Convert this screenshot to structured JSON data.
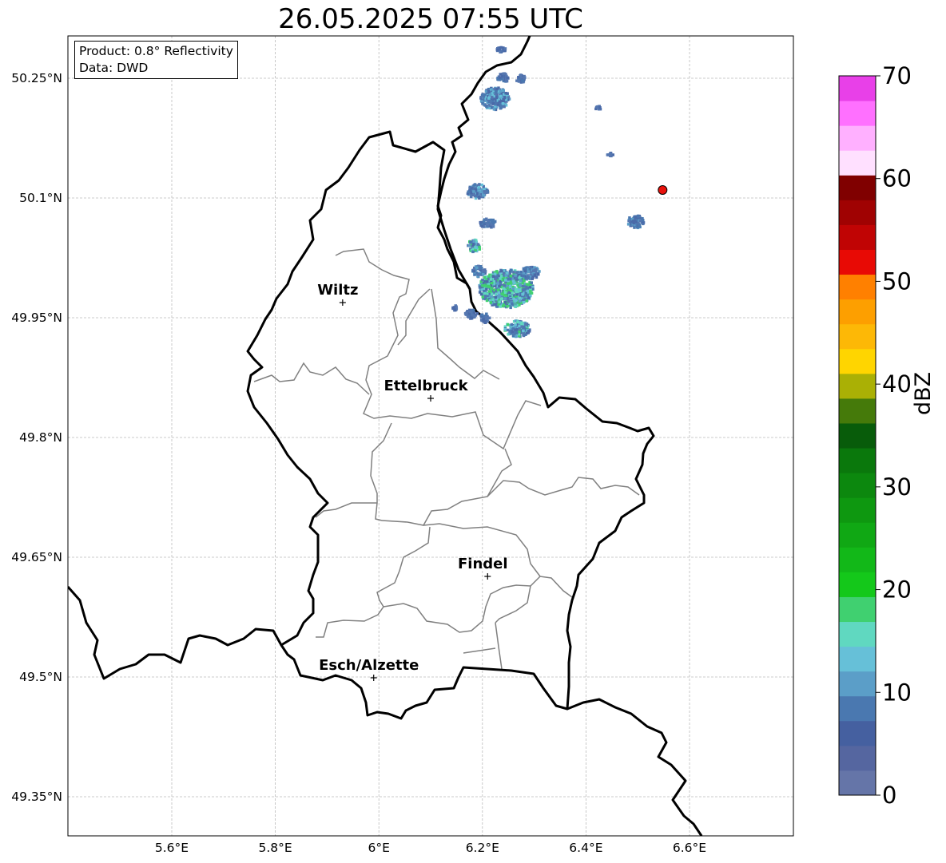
{
  "title": "26.05.2025 07:55 UTC",
  "info": {
    "product": "Product: 0.8° Reflectivity",
    "data": "Data: DWD"
  },
  "axes": {
    "lat_ticks": [
      "50.25°N",
      "50.1°N",
      "49.95°N",
      "49.8°N",
      "49.65°N",
      "49.5°N",
      "49.35°N"
    ],
    "lon_ticks": [
      "5.6°E",
      "5.8°E",
      "6°E",
      "6.2°E",
      "6.4°E",
      "6.6°E"
    ]
  },
  "cities": [
    {
      "name": "Wiltz",
      "lon": 5.93,
      "lat": 49.969
    },
    {
      "name": "Ettelbruck",
      "lon": 6.1,
      "lat": 49.849
    },
    {
      "name": "Findel",
      "lon": 6.21,
      "lat": 49.626
    },
    {
      "name": "Esch/Alzette",
      "lon": 5.99,
      "lat": 49.499
    }
  ],
  "marker": {
    "lon": 6.548,
    "lat": 50.11,
    "color": "#e8120c"
  },
  "colorbar": {
    "label": "dBZ",
    "ticks": [
      "0",
      "10",
      "20",
      "30",
      "40",
      "50",
      "60",
      "70"
    ],
    "colors": [
      "#6575a8",
      "#5566a0",
      "#4560a0",
      "#4a78b0",
      "#5b9ec8",
      "#66c0d8",
      "#60d8c0",
      "#40d070",
      "#14c81a",
      "#12b818",
      "#10a814",
      "#0e9810",
      "#0c880e",
      "#0a780c",
      "#085c0a",
      "#457a0a",
      "#aab005",
      "#ffd500",
      "#fdb806",
      "#fd9f00",
      "#ff8000",
      "#e80a05",
      "#c00404",
      "#a00202",
      "#800000",
      "#ffe0ff",
      "#ffb0ff",
      "#ff70ff",
      "#e840e8"
    ]
  }
}
